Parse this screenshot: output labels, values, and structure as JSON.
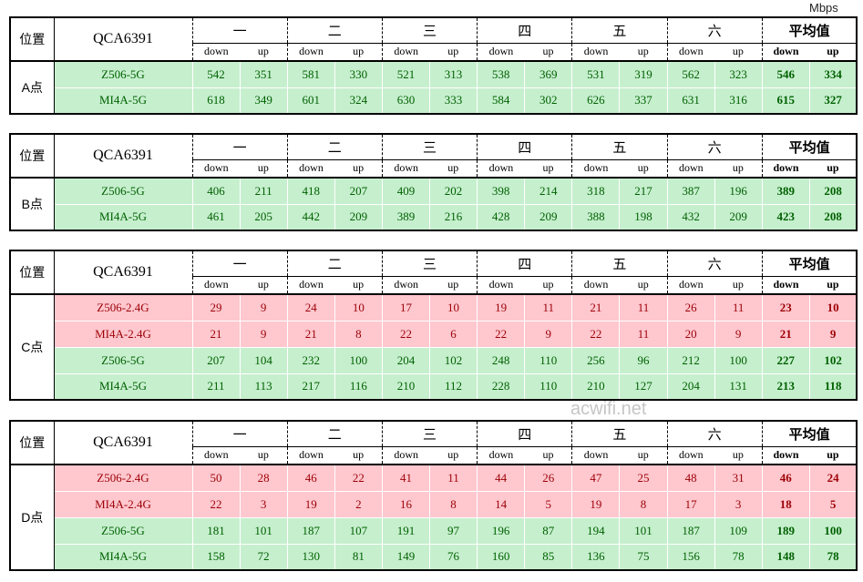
{
  "unit": "Mbps",
  "watermark": "acwifi.net",
  "tables": [
    {
      "corner": "位置",
      "location": "A点",
      "chip": "QCA6391",
      "groups": [
        "一",
        "二",
        "三",
        "四",
        "五",
        "六",
        "平均值"
      ],
      "subheaders": [
        "down",
        "up",
        "down",
        "up",
        "down",
        "up",
        "down",
        "up",
        "down",
        "up",
        "down",
        "up",
        "down",
        "up"
      ],
      "rows": [
        {
          "name": "Z506-5G",
          "values": [
            542,
            351,
            581,
            330,
            521,
            313,
            538,
            369,
            531,
            319,
            562,
            323,
            546,
            334
          ],
          "fill": "#c6efce",
          "text_color": "#006100"
        },
        {
          "name": "MI4A-5G",
          "values": [
            618,
            349,
            601,
            324,
            630,
            333,
            584,
            302,
            626,
            337,
            631,
            316,
            615,
            327
          ],
          "fill": "#c6efce",
          "text_color": "#006100"
        }
      ]
    },
    {
      "corner": "位置",
      "location": "B点",
      "chip": "QCA6391",
      "groups": [
        "一",
        "二",
        "三",
        "四",
        "五",
        "六",
        "平均值"
      ],
      "subheaders": [
        "down",
        "up",
        "down",
        "up",
        "down",
        "up",
        "down",
        "up",
        "down",
        "up",
        "down",
        "up",
        "down",
        "up"
      ],
      "rows": [
        {
          "name": "Z506-5G",
          "values": [
            406,
            211,
            418,
            207,
            409,
            202,
            398,
            214,
            318,
            217,
            387,
            196,
            389,
            208
          ],
          "fill": "#c6efce",
          "text_color": "#006100"
        },
        {
          "name": "MI4A-5G",
          "values": [
            461,
            205,
            442,
            209,
            389,
            216,
            428,
            209,
            388,
            198,
            432,
            209,
            423,
            208
          ],
          "fill": "#c6efce",
          "text_color": "#006100"
        }
      ]
    },
    {
      "corner": "位置",
      "location": "C点",
      "chip": "QCA6391",
      "groups": [
        "一",
        "二",
        "三",
        "四",
        "五",
        "六",
        "平均值"
      ],
      "subheaders": [
        "down",
        "up",
        "down",
        "up",
        "dwon",
        "up",
        "down",
        "up",
        "down",
        "up",
        "down",
        "up",
        "down",
        "up"
      ],
      "rows": [
        {
          "name": "Z506-2.4G",
          "values": [
            29,
            9,
            24,
            10,
            17,
            10,
            19,
            11,
            21,
            11,
            26,
            11,
            23,
            10
          ],
          "fill": "#ffc7ce",
          "text_color": "#9c0006"
        },
        {
          "name": "MI4A-2.4G",
          "values": [
            21,
            9,
            21,
            8,
            22,
            6,
            22,
            9,
            22,
            11,
            20,
            9,
            21,
            9
          ],
          "fill": "#ffc7ce",
          "text_color": "#9c0006"
        },
        {
          "name": "Z506-5G",
          "values": [
            207,
            104,
            232,
            100,
            204,
            102,
            248,
            110,
            256,
            96,
            212,
            100,
            227,
            102
          ],
          "fill": "#c6efce",
          "text_color": "#006100"
        },
        {
          "name": "MI4A-5G",
          "values": [
            211,
            113,
            217,
            116,
            210,
            112,
            228,
            110,
            210,
            127,
            204,
            131,
            213,
            118
          ],
          "fill": "#c6efce",
          "text_color": "#006100"
        }
      ]
    },
    {
      "corner": "位置",
      "location": "D点",
      "chip": "QCA6391",
      "groups": [
        "一",
        "二",
        "三",
        "四",
        "五",
        "六",
        "平均值"
      ],
      "subheaders": [
        "down",
        "up",
        "down",
        "up",
        "down",
        "up",
        "down",
        "up",
        "down",
        "up",
        "down",
        "up",
        "down",
        "up"
      ],
      "rows": [
        {
          "name": "Z506-2.4G",
          "values": [
            50,
            28,
            46,
            22,
            41,
            11,
            44,
            26,
            47,
            25,
            48,
            31,
            46,
            24
          ],
          "fill": "#ffc7ce",
          "text_color": "#9c0006"
        },
        {
          "name": "MI4A-2.4G",
          "values": [
            22,
            3,
            19,
            2,
            16,
            8,
            14,
            5,
            19,
            8,
            17,
            3,
            18,
            5
          ],
          "fill": "#ffc7ce",
          "text_color": "#9c0006"
        },
        {
          "name": "Z506-5G",
          "values": [
            181,
            101,
            187,
            107,
            191,
            97,
            196,
            87,
            194,
            101,
            187,
            109,
            189,
            100
          ],
          "fill": "#c6efce",
          "text_color": "#006100"
        },
        {
          "name": "MI4A-5G",
          "values": [
            158,
            72,
            130,
            81,
            149,
            76,
            160,
            85,
            136,
            75,
            156,
            78,
            148,
            78
          ],
          "fill": "#c6efce",
          "text_color": "#006100"
        }
      ]
    }
  ]
}
